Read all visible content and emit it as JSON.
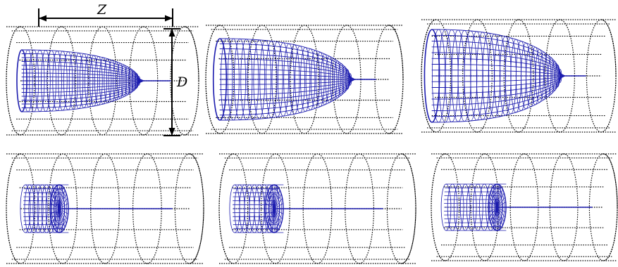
{
  "labels": {
    "length": "Z",
    "diameter": "D"
  },
  "colors": {
    "mesh": "#1c1cae",
    "cage": "#000000"
  }
}
